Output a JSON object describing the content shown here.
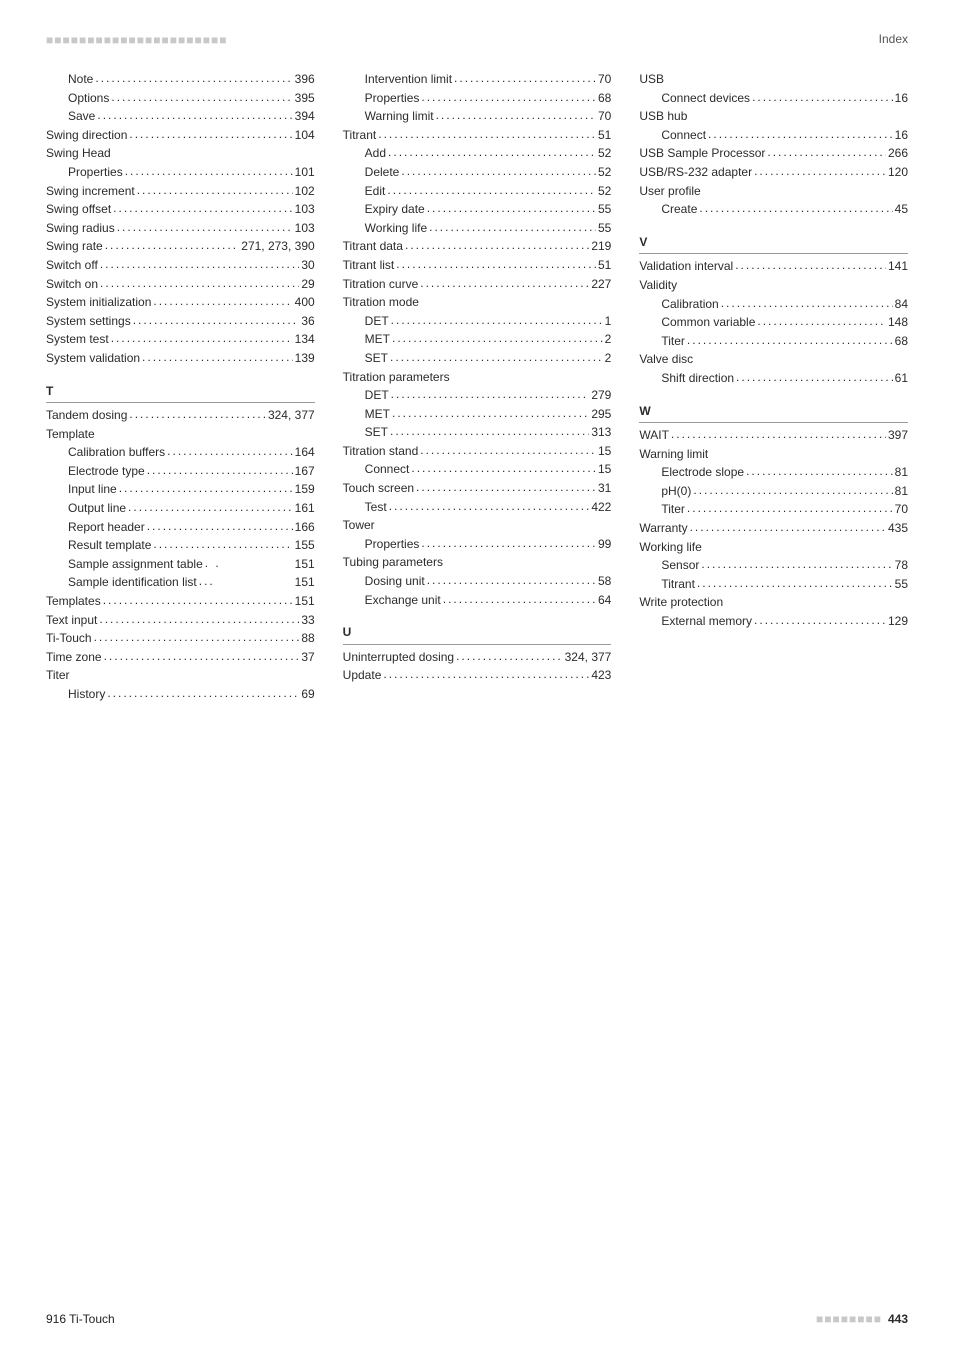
{
  "header": {
    "dots": "■■■■■■■■■■■■■■■■■■■■■■",
    "label": "Index"
  },
  "footer": {
    "left": "916 Ti-Touch",
    "dots": "■■■■■■■■",
    "pagenum": "443"
  },
  "columns": [
    {
      "blocks": [
        {
          "entries": [
            {
              "label": "Note",
              "page": "396",
              "sub": true
            },
            {
              "label": "Options",
              "page": "395",
              "sub": true
            },
            {
              "label": "Save",
              "page": "394",
              "sub": true
            },
            {
              "label": "Swing direction",
              "page": "104"
            },
            {
              "label": "Swing Head",
              "page": ""
            },
            {
              "label": "Properties",
              "page": "101",
              "sub": true
            },
            {
              "label": "Swing increment",
              "page": "102"
            },
            {
              "label": "Swing offset",
              "page": "103"
            },
            {
              "label": "Swing radius",
              "page": "103"
            },
            {
              "label": "Swing rate",
              "page": "271, 273, 390"
            },
            {
              "label": "Switch off",
              "page": "30"
            },
            {
              "label": "Switch on",
              "page": "29"
            },
            {
              "label": "System initialization",
              "page": "400"
            },
            {
              "label": "System settings",
              "page": "36"
            },
            {
              "label": "System test",
              "page": "134"
            },
            {
              "label": "System validation",
              "page": "139"
            }
          ]
        },
        {
          "letter": "T",
          "entries": [
            {
              "label": "Tandem dosing",
              "page": "324, 377"
            },
            {
              "label": "Template",
              "page": ""
            },
            {
              "label": "Calibration buffers",
              "page": "164",
              "sub": true
            },
            {
              "label": "Electrode type",
              "page": "167",
              "sub": true
            },
            {
              "label": "Input line",
              "page": "159",
              "sub": true
            },
            {
              "label": "Output line",
              "page": "161",
              "sub": true
            },
            {
              "label": "Report header",
              "page": "166",
              "sub": true
            },
            {
              "label": "Result template",
              "page": "155",
              "sub": true
            },
            {
              "label": "Sample assignment table",
              "page": "151",
              "sub": true,
              "leader": " . . "
            },
            {
              "label": "Sample identification list",
              "page": "151",
              "sub": true,
              "leader": " ... "
            },
            {
              "label": "Templates",
              "page": "151"
            },
            {
              "label": "Text input",
              "page": "33"
            },
            {
              "label": "Ti-Touch",
              "page": "88"
            },
            {
              "label": "Time zone",
              "page": "37"
            },
            {
              "label": "Titer",
              "page": ""
            },
            {
              "label": "History",
              "page": "69",
              "sub": true
            }
          ]
        }
      ]
    },
    {
      "blocks": [
        {
          "entries": [
            {
              "label": "Intervention limit",
              "page": "70",
              "sub": true
            },
            {
              "label": "Properties",
              "page": "68",
              "sub": true
            },
            {
              "label": "Warning limit",
              "page": "70",
              "sub": true
            },
            {
              "label": "Titrant",
              "page": "51"
            },
            {
              "label": "Add",
              "page": "52",
              "sub": true
            },
            {
              "label": "Delete",
              "page": "52",
              "sub": true
            },
            {
              "label": "Edit",
              "page": "52",
              "sub": true
            },
            {
              "label": "Expiry date",
              "page": "55",
              "sub": true
            },
            {
              "label": "Working life",
              "page": "55",
              "sub": true
            },
            {
              "label": "Titrant data",
              "page": "219"
            },
            {
              "label": "Titrant list",
              "page": "51"
            },
            {
              "label": "Titration curve",
              "page": "227"
            },
            {
              "label": "Titration mode",
              "page": ""
            },
            {
              "label": "DET",
              "page": "1",
              "sub": true
            },
            {
              "label": "MET",
              "page": "2",
              "sub": true
            },
            {
              "label": "SET",
              "page": "2",
              "sub": true
            },
            {
              "label": "Titration parameters",
              "page": ""
            },
            {
              "label": "DET",
              "page": "279",
              "sub": true
            },
            {
              "label": "MET",
              "page": "295",
              "sub": true
            },
            {
              "label": "SET",
              "page": "313",
              "sub": true
            },
            {
              "label": "Titration stand",
              "page": "15"
            },
            {
              "label": "Connect",
              "page": "15",
              "sub": true
            },
            {
              "label": "Touch screen",
              "page": "31"
            },
            {
              "label": "Test",
              "page": "422",
              "sub": true
            },
            {
              "label": "Tower",
              "page": ""
            },
            {
              "label": "Properties",
              "page": "99",
              "sub": true
            },
            {
              "label": "Tubing parameters",
              "page": ""
            },
            {
              "label": "Dosing unit",
              "page": "58",
              "sub": true
            },
            {
              "label": "Exchange unit",
              "page": "64",
              "sub": true
            }
          ]
        },
        {
          "letter": "U",
          "entries": [
            {
              "label": "Uninterrupted dosing",
              "page": "324, 377"
            },
            {
              "label": "Update",
              "page": "423"
            }
          ]
        }
      ]
    },
    {
      "blocks": [
        {
          "entries": [
            {
              "label": "USB",
              "page": ""
            },
            {
              "label": "Connect devices",
              "page": "16",
              "sub": true
            },
            {
              "label": "USB hub",
              "page": ""
            },
            {
              "label": "Connect",
              "page": "16",
              "sub": true
            },
            {
              "label": "USB Sample Processor",
              "page": "266"
            },
            {
              "label": "USB/RS-232 adapter",
              "page": "120"
            },
            {
              "label": "User profile",
              "page": ""
            },
            {
              "label": "Create",
              "page": "45",
              "sub": true
            }
          ]
        },
        {
          "letter": "V",
          "entries": [
            {
              "label": "Validation interval",
              "page": "141"
            },
            {
              "label": "Validity",
              "page": ""
            },
            {
              "label": "Calibration",
              "page": "84",
              "sub": true
            },
            {
              "label": "Common variable",
              "page": "148",
              "sub": true
            },
            {
              "label": "Titer",
              "page": "68",
              "sub": true
            },
            {
              "label": "Valve disc",
              "page": ""
            },
            {
              "label": "Shift direction",
              "page": "61",
              "sub": true
            }
          ]
        },
        {
          "letter": "W",
          "entries": [
            {
              "label": "WAIT",
              "page": "397"
            },
            {
              "label": "Warning limit",
              "page": ""
            },
            {
              "label": "Electrode slope",
              "page": "81",
              "sub": true
            },
            {
              "label": "pH(0)",
              "page": "81",
              "sub": true
            },
            {
              "label": "Titer",
              "page": "70",
              "sub": true
            },
            {
              "label": "Warranty",
              "page": "435"
            },
            {
              "label": "Working life",
              "page": ""
            },
            {
              "label": "Sensor",
              "page": "78",
              "sub": true
            },
            {
              "label": "Titrant",
              "page": "55",
              "sub": true
            },
            {
              "label": "Write protection",
              "page": ""
            },
            {
              "label": "External memory",
              "page": "129",
              "sub": true
            }
          ]
        }
      ]
    }
  ]
}
